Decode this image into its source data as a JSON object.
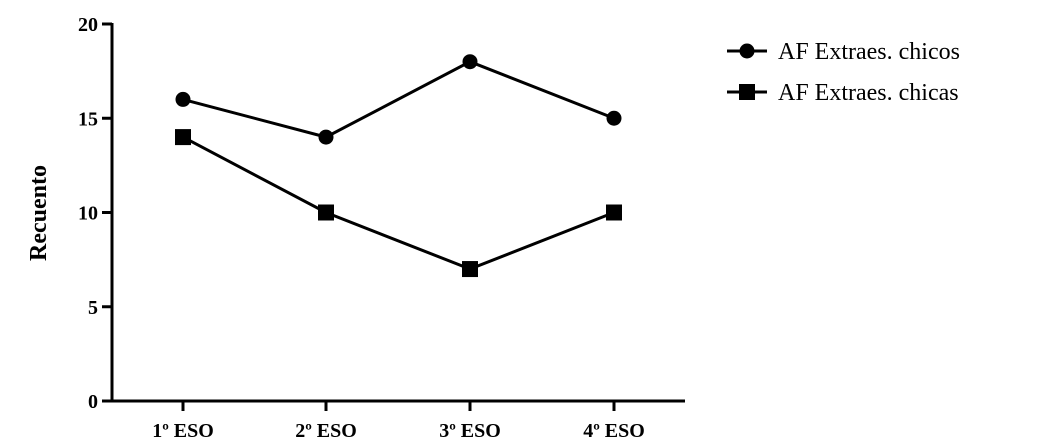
{
  "chart_data": {
    "type": "line",
    "title": "",
    "xlabel": "",
    "ylabel": "Recuento",
    "categories": [
      "1º ESO",
      "2º ESO",
      "3º ESO",
      "4º ESO"
    ],
    "ylim": [
      0,
      20
    ],
    "yticks": [
      0,
      5,
      10,
      15,
      20
    ],
    "grid": false,
    "legend_position": "top-right",
    "series": [
      {
        "name": "AF Extraes. chicos",
        "marker": "circle",
        "values": [
          16,
          14,
          18,
          15
        ]
      },
      {
        "name": "AF Extraes. chicas",
        "marker": "square",
        "values": [
          14,
          10,
          7,
          10
        ]
      }
    ]
  }
}
